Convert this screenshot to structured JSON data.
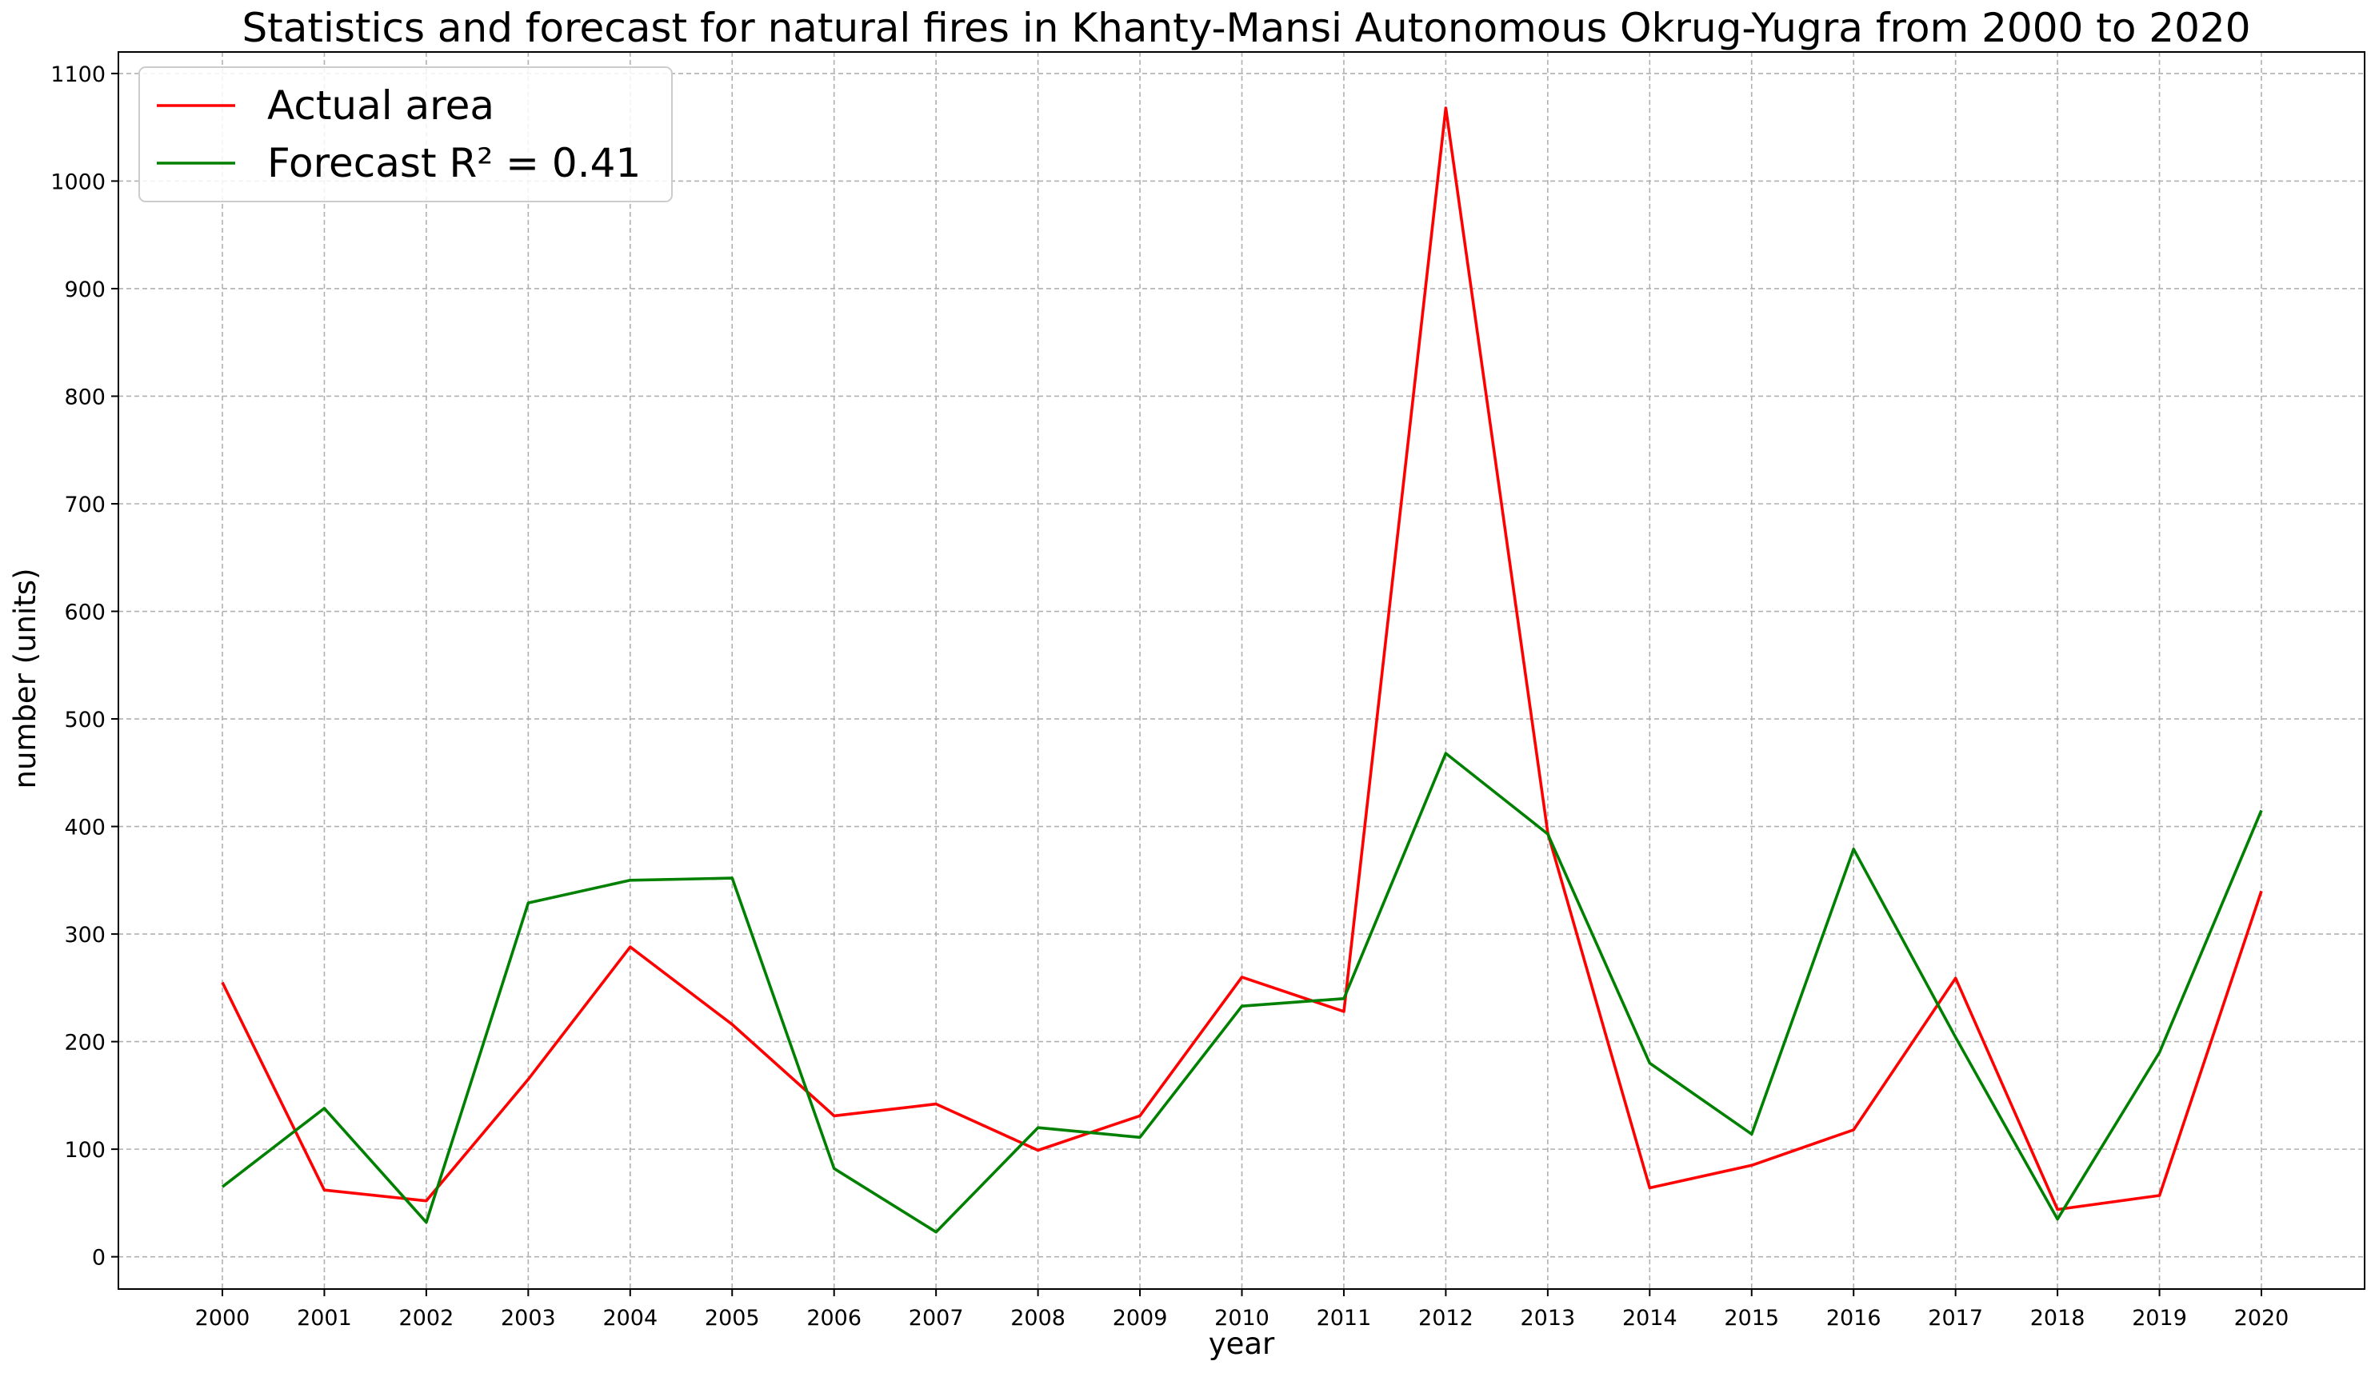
{
  "chart_data": {
    "type": "line",
    "title": "Statistics and forecast for natural fires in Khanty-Mansi Autonomous Okrug-Yugra from 2000 to 2020",
    "xlabel": "year",
    "ylabel": "number (units)",
    "x": [
      "2000",
      "2001",
      "2002",
      "2003",
      "2004",
      "2005",
      "2006",
      "2007",
      "2008",
      "2009",
      "2010",
      "2011",
      "2012",
      "2013",
      "2014",
      "2015",
      "2016",
      "2017",
      "2018",
      "2019",
      "2020"
    ],
    "yticks": [
      0,
      100,
      200,
      300,
      400,
      500,
      600,
      700,
      800,
      900,
      1000,
      1100
    ],
    "ylim": [
      -30,
      1120
    ],
    "grid": true,
    "legend_position": "upper-left",
    "series": [
      {
        "name": "Actual area",
        "color": "#ff0000",
        "values": [
          255,
          62,
          52,
          165,
          288,
          216,
          131,
          142,
          99,
          131,
          260,
          228,
          1068,
          394,
          64,
          85,
          118,
          259,
          44,
          57,
          340
        ]
      },
      {
        "name": "Forecast  R² = 0.41",
        "color": "#008000",
        "values": [
          65,
          138,
          32,
          329,
          350,
          352,
          82,
          23,
          120,
          111,
          233,
          240,
          468,
          393,
          180,
          114,
          379,
          204,
          35,
          190,
          415
        ]
      }
    ]
  }
}
